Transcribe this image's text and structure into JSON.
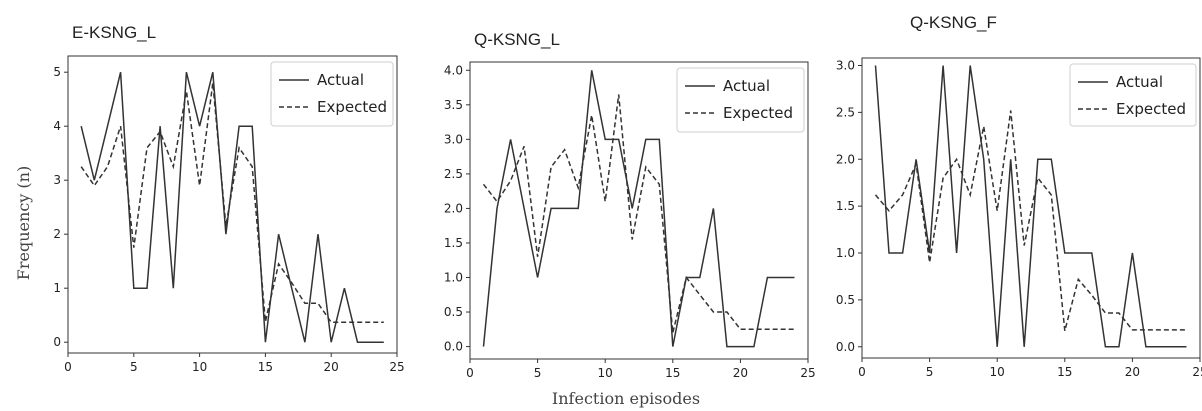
{
  "figure": {
    "ylabel": "Frequency (n)",
    "xlabel": "Infection episodes"
  },
  "chart_data": [
    {
      "type": "line",
      "title": "E-KSNG_L",
      "xlim": [
        0,
        25
      ],
      "ylim": [
        -0.2,
        5.3
      ],
      "xticks": [
        0,
        5,
        10,
        15,
        20,
        25
      ],
      "yticks": [
        0,
        1,
        2,
        3,
        4,
        5
      ],
      "legend": "top-right",
      "grid": false,
      "x": [
        1,
        2,
        3,
        4,
        5,
        6,
        7,
        8,
        9,
        10,
        11,
        12,
        13,
        14,
        15,
        16,
        17,
        18,
        19,
        20,
        21,
        22,
        23,
        24
      ],
      "series": [
        {
          "name": "Actual",
          "style": "solid",
          "values": [
            4,
            3,
            4,
            5,
            1,
            1,
            4,
            1,
            5,
            4,
            5,
            2,
            4,
            4,
            0,
            2,
            1,
            0,
            2,
            0,
            1,
            0,
            0,
            0
          ]
        },
        {
          "name": "Expected",
          "style": "dashed",
          "values": [
            3.25,
            2.9,
            3.25,
            4.0,
            1.75,
            3.6,
            3.9,
            3.25,
            4.65,
            2.9,
            4.8,
            2.15,
            3.6,
            3.25,
            0.38,
            1.45,
            1.1,
            0.72,
            0.72,
            0.37,
            0.37,
            0.37,
            0.37,
            0.37
          ]
        }
      ]
    },
    {
      "type": "line",
      "title": "Q-KSNG_L",
      "xlim": [
        0,
        25
      ],
      "ylim": [
        -0.18,
        4.12
      ],
      "xticks": [
        0,
        5,
        10,
        15,
        20,
        25
      ],
      "yticks": [
        0.0,
        0.5,
        1.0,
        1.5,
        2.0,
        2.5,
        3.0,
        3.5,
        4.0
      ],
      "legend": "top-right",
      "grid": false,
      "x": [
        1,
        2,
        3,
        4,
        5,
        6,
        7,
        8,
        9,
        10,
        11,
        12,
        13,
        14,
        15,
        16,
        17,
        18,
        19,
        20,
        21,
        22,
        23,
        24
      ],
      "series": [
        {
          "name": "Actual",
          "style": "solid",
          "values": [
            0,
            2,
            3,
            2,
            1,
            2,
            2,
            2,
            4,
            3,
            3,
            2,
            3,
            3,
            0,
            1,
            1,
            2,
            0,
            0,
            0,
            1,
            1,
            1
          ]
        },
        {
          "name": "Expected",
          "style": "dashed",
          "values": [
            2.35,
            2.1,
            2.4,
            2.9,
            1.3,
            2.6,
            2.85,
            2.3,
            3.35,
            2.1,
            3.65,
            1.55,
            2.6,
            2.35,
            0.2,
            1.0,
            0.75,
            0.5,
            0.5,
            0.25,
            0.25,
            0.25,
            0.25,
            0.25
          ]
        }
      ]
    },
    {
      "type": "line",
      "title": "Q-KSNG_F",
      "xlim": [
        0,
        25
      ],
      "ylim": [
        -0.12,
        3.08
      ],
      "xticks": [
        0,
        5,
        10,
        15,
        20,
        25
      ],
      "yticks": [
        0.0,
        0.5,
        1.0,
        1.5,
        2.0,
        2.5,
        3.0
      ],
      "legend": "top-right",
      "grid": false,
      "x": [
        1,
        2,
        3,
        4,
        5,
        6,
        7,
        8,
        9,
        10,
        11,
        12,
        13,
        14,
        15,
        16,
        17,
        18,
        19,
        20,
        21,
        22,
        23,
        24
      ],
      "series": [
        {
          "name": "Actual",
          "style": "solid",
          "values": [
            3,
            1,
            1,
            2,
            1,
            3,
            1,
            3,
            2,
            0,
            2,
            0,
            2,
            2,
            1,
            1,
            1,
            0,
            0,
            1,
            0,
            0,
            0,
            0
          ]
        },
        {
          "name": "Expected",
          "style": "dashed",
          "values": [
            1.62,
            1.45,
            1.62,
            1.95,
            0.9,
            1.8,
            2.0,
            1.62,
            2.35,
            1.45,
            2.52,
            1.08,
            1.8,
            1.62,
            0.17,
            0.72,
            0.55,
            0.36,
            0.36,
            0.18,
            0.18,
            0.18,
            0.18,
            0.18
          ]
        }
      ]
    }
  ]
}
